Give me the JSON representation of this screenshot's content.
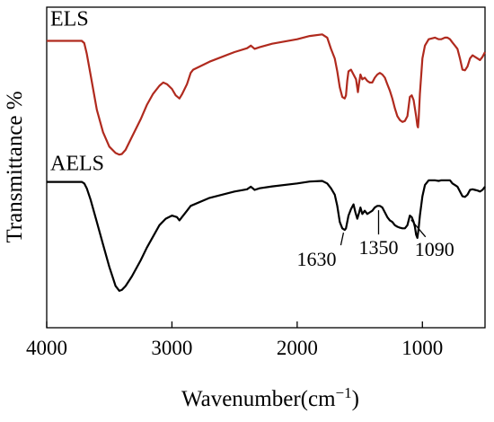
{
  "chart_data": {
    "type": "line",
    "title": "",
    "xlabel_main": "Wavenumber(cm",
    "xlabel_sup": "−1",
    "xlabel_close": ")",
    "ylabel": "Transmittance %",
    "xlim": [
      4000,
      500
    ],
    "x_reversed": true,
    "ylim": [
      0,
      100
    ],
    "y_ticks_shown": false,
    "grid": false,
    "x_ticks": [
      {
        "value": 4000,
        "label": "4000"
      },
      {
        "value": 3000,
        "label": "3000"
      },
      {
        "value": 2000,
        "label": "2000"
      },
      {
        "value": 1000,
        "label": "1000"
      }
    ],
    "series": [
      {
        "name": "ELS",
        "color": "#b02a1e",
        "points": [
          [
            4000,
            89.5
          ],
          [
            3800,
            89.5
          ],
          [
            3720,
            89.5
          ],
          [
            3700,
            88.8
          ],
          [
            3680,
            85.5
          ],
          [
            3650,
            79
          ],
          [
            3600,
            68
          ],
          [
            3550,
            61
          ],
          [
            3500,
            56.5
          ],
          [
            3450,
            54.5
          ],
          [
            3420,
            54
          ],
          [
            3400,
            54.2
          ],
          [
            3370,
            55.5
          ],
          [
            3320,
            59.5
          ],
          [
            3250,
            65
          ],
          [
            3200,
            69.5
          ],
          [
            3150,
            73
          ],
          [
            3100,
            75.5
          ],
          [
            3070,
            76.5
          ],
          [
            3040,
            76
          ],
          [
            3000,
            74.5
          ],
          [
            2970,
            72.5
          ],
          [
            2940,
            71.5
          ],
          [
            2920,
            72.8
          ],
          [
            2880,
            76
          ],
          [
            2850,
            79.5
          ],
          [
            2830,
            80.5
          ],
          [
            2700,
            83
          ],
          [
            2500,
            86
          ],
          [
            2400,
            87.2
          ],
          [
            2370,
            88
          ],
          [
            2340,
            87
          ],
          [
            2300,
            87.5
          ],
          [
            2200,
            88.6
          ],
          [
            2000,
            90
          ],
          [
            1900,
            91
          ],
          [
            1800,
            91.5
          ],
          [
            1760,
            90.5
          ],
          [
            1730,
            87
          ],
          [
            1700,
            84
          ],
          [
            1680,
            80
          ],
          [
            1660,
            75
          ],
          [
            1640,
            72
          ],
          [
            1620,
            71.5
          ],
          [
            1610,
            72.5
          ],
          [
            1600,
            77
          ],
          [
            1590,
            80
          ],
          [
            1570,
            80.5
          ],
          [
            1550,
            79
          ],
          [
            1530,
            77.5
          ],
          [
            1515,
            73.5
          ],
          [
            1505,
            76.5
          ],
          [
            1495,
            79
          ],
          [
            1480,
            77.5
          ],
          [
            1460,
            78
          ],
          [
            1440,
            77
          ],
          [
            1420,
            76.5
          ],
          [
            1400,
            76.5
          ],
          [
            1380,
            78
          ],
          [
            1360,
            79
          ],
          [
            1340,
            79.5
          ],
          [
            1320,
            79
          ],
          [
            1300,
            78
          ],
          [
            1280,
            76
          ],
          [
            1260,
            74
          ],
          [
            1240,
            71.5
          ],
          [
            1220,
            68.5
          ],
          [
            1200,
            66
          ],
          [
            1180,
            64.8
          ],
          [
            1160,
            64.2
          ],
          [
            1140,
            64.5
          ],
          [
            1120,
            66
          ],
          [
            1100,
            72
          ],
          [
            1085,
            72.5
          ],
          [
            1070,
            71
          ],
          [
            1050,
            66
          ],
          [
            1040,
            63
          ],
          [
            1035,
            62.5
          ],
          [
            1030,
            65
          ],
          [
            1020,
            73
          ],
          [
            1000,
            84
          ],
          [
            980,
            88
          ],
          [
            950,
            90
          ],
          [
            900,
            90.5
          ],
          [
            870,
            90
          ],
          [
            850,
            90
          ],
          [
            820,
            90.5
          ],
          [
            800,
            90.5
          ],
          [
            780,
            90
          ],
          [
            760,
            89
          ],
          [
            740,
            88
          ],
          [
            720,
            87
          ],
          [
            700,
            84
          ],
          [
            680,
            80.5
          ],
          [
            660,
            80.3
          ],
          [
            640,
            81.5
          ],
          [
            620,
            84
          ],
          [
            600,
            85
          ],
          [
            580,
            84.5
          ],
          [
            560,
            84
          ],
          [
            540,
            83.5
          ],
          [
            520,
            84.5
          ],
          [
            500,
            86
          ]
        ]
      },
      {
        "name": "AELS",
        "color": "#000000",
        "points": [
          [
            4000,
            45.5
          ],
          [
            3800,
            45.5
          ],
          [
            3720,
            45.5
          ],
          [
            3700,
            45
          ],
          [
            3680,
            43.5
          ],
          [
            3650,
            40
          ],
          [
            3600,
            33
          ],
          [
            3550,
            26
          ],
          [
            3500,
            19
          ],
          [
            3450,
            13
          ],
          [
            3420,
            11.5
          ],
          [
            3400,
            11.8
          ],
          [
            3370,
            13
          ],
          [
            3320,
            16
          ],
          [
            3250,
            21
          ],
          [
            3200,
            25
          ],
          [
            3150,
            28.5
          ],
          [
            3100,
            32
          ],
          [
            3050,
            34
          ],
          [
            3000,
            35
          ],
          [
            2960,
            34.5
          ],
          [
            2940,
            33.5
          ],
          [
            2920,
            34.5
          ],
          [
            2880,
            36.5
          ],
          [
            2850,
            38
          ],
          [
            2700,
            40.5
          ],
          [
            2500,
            42.5
          ],
          [
            2400,
            43.2
          ],
          [
            2370,
            44
          ],
          [
            2340,
            43
          ],
          [
            2300,
            43.5
          ],
          [
            2200,
            44.1
          ],
          [
            2000,
            45
          ],
          [
            1900,
            45.6
          ],
          [
            1800,
            45.8
          ],
          [
            1760,
            45
          ],
          [
            1730,
            43.5
          ],
          [
            1700,
            41.5
          ],
          [
            1680,
            38
          ],
          [
            1660,
            33
          ],
          [
            1640,
            31
          ],
          [
            1620,
            30.5
          ],
          [
            1610,
            31
          ],
          [
            1600,
            33
          ],
          [
            1590,
            35
          ],
          [
            1570,
            37
          ],
          [
            1550,
            38.5
          ],
          [
            1535,
            36
          ],
          [
            1520,
            34
          ],
          [
            1505,
            36
          ],
          [
            1495,
            37.5
          ],
          [
            1480,
            35.5
          ],
          [
            1460,
            36.5
          ],
          [
            1440,
            35.5
          ],
          [
            1420,
            36
          ],
          [
            1400,
            36.5
          ],
          [
            1380,
            37.5
          ],
          [
            1360,
            38
          ],
          [
            1340,
            38
          ],
          [
            1320,
            37.5
          ],
          [
            1300,
            36
          ],
          [
            1280,
            34.5
          ],
          [
            1260,
            33.5
          ],
          [
            1240,
            33
          ],
          [
            1220,
            32
          ],
          [
            1200,
            31.5
          ],
          [
            1180,
            31.2
          ],
          [
            1160,
            31
          ],
          [
            1140,
            31
          ],
          [
            1120,
            32
          ],
          [
            1100,
            35
          ],
          [
            1085,
            34.5
          ],
          [
            1070,
            33
          ],
          [
            1060,
            31.5
          ],
          [
            1050,
            29
          ],
          [
            1040,
            28
          ],
          [
            1030,
            31
          ],
          [
            1020,
            35
          ],
          [
            1000,
            41
          ],
          [
            980,
            44.5
          ],
          [
            950,
            46
          ],
          [
            900,
            46
          ],
          [
            870,
            45.8
          ],
          [
            850,
            46
          ],
          [
            800,
            46
          ],
          [
            780,
            46
          ],
          [
            760,
            45
          ],
          [
            740,
            44.5
          ],
          [
            720,
            44
          ],
          [
            700,
            42.5
          ],
          [
            680,
            41
          ],
          [
            660,
            40.8
          ],
          [
            640,
            41.5
          ],
          [
            620,
            43
          ],
          [
            600,
            43.2
          ],
          [
            580,
            43
          ],
          [
            560,
            42.8
          ],
          [
            540,
            42.5
          ],
          [
            520,
            43
          ],
          [
            500,
            44
          ]
        ]
      }
    ],
    "series_labels": [
      {
        "text": "ELS",
        "series": 0
      },
      {
        "text": "AELS",
        "series": 1
      }
    ],
    "annotations": [
      {
        "text": "1630",
        "x": 1630,
        "y": 30.5
      },
      {
        "text": "1350",
        "x": 1350,
        "y": 37.5
      },
      {
        "text": "1090",
        "x": 1090,
        "y": 34.5
      }
    ]
  }
}
